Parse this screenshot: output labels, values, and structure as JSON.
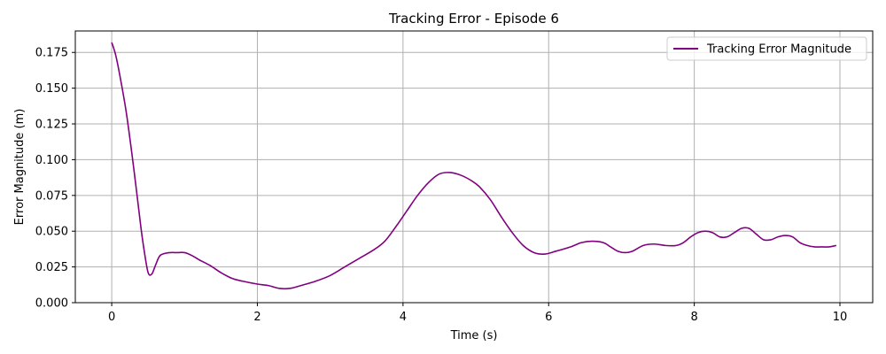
{
  "chart_data": {
    "type": "line",
    "title": "Tracking Error - Episode 6",
    "xlabel": "Time (s)",
    "ylabel": "Error Magnitude (m)",
    "xlim": [
      -0.5,
      10.45
    ],
    "ylim": [
      0.0,
      0.19
    ],
    "xticks": [
      0,
      2,
      4,
      6,
      8,
      10
    ],
    "xtick_labels": [
      "0",
      "2",
      "4",
      "6",
      "8",
      "10"
    ],
    "yticks": [
      0.0,
      0.025,
      0.05,
      0.075,
      0.1,
      0.125,
      0.15,
      0.175
    ],
    "ytick_labels": [
      "0.000",
      "0.025",
      "0.050",
      "0.075",
      "0.100",
      "0.125",
      "0.150",
      "0.175"
    ],
    "grid": true,
    "legend_position": "top-right",
    "series": [
      {
        "name": "Tracking Error Magnitude",
        "color": "#800080",
        "x": [
          0.0,
          0.05,
          0.1,
          0.2,
          0.3,
          0.4,
          0.45,
          0.5,
          0.55,
          0.6,
          0.65,
          0.7,
          0.8,
          0.9,
          1.0,
          1.1,
          1.2,
          1.35,
          1.5,
          1.65,
          1.8,
          2.0,
          2.15,
          2.3,
          2.45,
          2.6,
          2.8,
          3.0,
          3.2,
          3.4,
          3.6,
          3.75,
          3.9,
          4.05,
          4.2,
          4.35,
          4.5,
          4.65,
          4.8,
          4.95,
          5.05,
          5.2,
          5.35,
          5.5,
          5.65,
          5.8,
          5.95,
          6.1,
          6.3,
          6.45,
          6.6,
          6.75,
          6.85,
          6.95,
          7.05,
          7.15,
          7.3,
          7.45,
          7.6,
          7.75,
          7.85,
          7.95,
          8.05,
          8.15,
          8.25,
          8.35,
          8.45,
          8.55,
          8.65,
          8.75,
          8.85,
          8.95,
          9.05,
          9.15,
          9.25,
          9.35,
          9.45,
          9.55,
          9.65,
          9.75,
          9.85,
          9.95
        ],
        "values": [
          0.182,
          0.174,
          0.162,
          0.133,
          0.095,
          0.053,
          0.035,
          0.021,
          0.02,
          0.026,
          0.032,
          0.034,
          0.035,
          0.035,
          0.035,
          0.033,
          0.03,
          0.026,
          0.021,
          0.017,
          0.015,
          0.013,
          0.012,
          0.01,
          0.01,
          0.012,
          0.015,
          0.019,
          0.025,
          0.031,
          0.037,
          0.043,
          0.053,
          0.064,
          0.075,
          0.084,
          0.09,
          0.091,
          0.089,
          0.085,
          0.081,
          0.072,
          0.06,
          0.049,
          0.04,
          0.035,
          0.034,
          0.036,
          0.039,
          0.042,
          0.043,
          0.042,
          0.039,
          0.036,
          0.035,
          0.036,
          0.04,
          0.041,
          0.04,
          0.04,
          0.042,
          0.046,
          0.049,
          0.05,
          0.049,
          0.046,
          0.046,
          0.049,
          0.052,
          0.052,
          0.048,
          0.044,
          0.044,
          0.046,
          0.047,
          0.046,
          0.042,
          0.04,
          0.039,
          0.039,
          0.039,
          0.04
        ]
      }
    ]
  }
}
